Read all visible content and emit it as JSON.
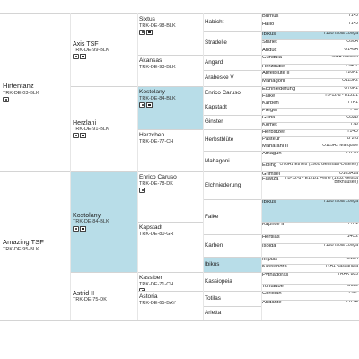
{
  "gen1": [
    {
      "name": "Hirtentanz",
      "reg": "TRK-DE-03-BLK",
      "icons": [
        "camera-icon"
      ]
    },
    {
      "name": "Amazing TSF",
      "reg": "TRK-DE-95-BLK"
    }
  ],
  "gen2": [
    {
      "name": "Axis TSF",
      "reg": "TRK-DE-99-BLK",
      "icons": [
        "camera-icon",
        "video-icon"
      ]
    },
    {
      "name": "Herzlani",
      "reg": "TRK-DE-91-BLK",
      "icons": [
        "camera-icon",
        "video-icon"
      ]
    },
    {
      "name": "Kostolany",
      "reg": "TRK-DE-84-BLK",
      "icons": [
        "camera-icon",
        "video-icon"
      ]
    },
    {
      "name": "Astrid II",
      "reg": "TRK-DE-75-DK"
    }
  ],
  "gen3": [
    {
      "name": "Sixtus",
      "reg": "TRK-DE-98-BLK",
      "icons": [
        "camera-icon",
        "video-icon"
      ]
    },
    {
      "name": "Akansas",
      "reg": "TRK-DE-93-BLK"
    },
    {
      "name": "Kostolany",
      "reg": "TRK-DE-84-BLK",
      "icons": [
        "camera-icon",
        "video-icon"
      ]
    },
    {
      "name": "Herzchen",
      "reg": "TRK-DE-77-CH"
    },
    {
      "name": "Enrico Caruso",
      "reg": "TRK-DE-78-DK",
      "icons": [
        "camera-icon"
      ]
    },
    {
      "name": "Kapstadt",
      "reg": "TRK-DE-80-GR"
    },
    {
      "name": "Kassiber",
      "reg": "TRK-DE-71-CH",
      "icons": [
        "camera-icon"
      ]
    },
    {
      "name": "Astoria",
      "reg": "TRK-DE-65-BAY"
    }
  ],
  "gen4": [
    {
      "name": "Habicht"
    },
    {
      "name": "Stradelle"
    },
    {
      "name": "Angard"
    },
    {
      "name": "Arabeske V"
    },
    {
      "name": "Enrico Caruso"
    },
    {
      "name": "Kapstadt"
    },
    {
      "name": "Ginster"
    },
    {
      "name": "Herbstblüte"
    },
    {
      "name": "Mahagoni"
    },
    {
      "name": "Elchniederung"
    },
    {
      "name": "Falke"
    },
    {
      "name": "Karben"
    },
    {
      "name": "Ibikus"
    },
    {
      "name": "Kassiopeia"
    },
    {
      "name": "Totilas"
    },
    {
      "name": "Arietta"
    }
  ],
  "gen5": [
    {
      "name": "Burnus",
      "reg": "T14J"
    },
    {
      "name": "Hallo",
      "reg": "T14J"
    },
    {
      "name": "Ibikus",
      "reg": "T15B Isola Longa"
    },
    {
      "name": "Starlet",
      "reg": "O90A"
    },
    {
      "name": "Anduc",
      "reg": "O149A"
    },
    {
      "name": "Gundula",
      "reg": "S84A Istella II"
    },
    {
      "name": "Herzbube",
      "reg": "T140Z"
    },
    {
      "name": "Apfelblüte II",
      "reg": "T20F1"
    },
    {
      "name": "Mahagoni",
      "reg": "O115A2"
    },
    {
      "name": "Elchniederung",
      "reg": "O76A1"
    },
    {
      "name": "Falke",
      "reg": "TB-12-d - E12B1"
    },
    {
      "name": "Karben",
      "reg": "T7A1"
    },
    {
      "name": "Pregel",
      "reg": "T4C"
    },
    {
      "name": "Guda",
      "reg": "O32B"
    },
    {
      "name": "Komet",
      "reg": "T7B"
    },
    {
      "name": "Herbstzeit",
      "reg": "T14O"
    },
    {
      "name": "Pasteur",
      "reg": "TB 2-d"
    },
    {
      "name": "Maharani II",
      "reg": "O115A2 Marquise"
    },
    {
      "name": "Amagun",
      "reg": "O27B"
    },
    {
      "name": "Elbing",
      "reg": "O76A1 Ethies (1960 Gehlhaar-Ditterke)"
    },
    {
      "name": "Grimsel",
      "reg": "O103A1a"
    },
    {
      "name": "Fawiza",
      "reg": "TB-12-d - E12B1 Feine (1952 Gestüt Birkhausen)"
    },
    {
      "name": "Ibikus",
      "reg": "T15B Isola Longa"
    },
    {
      "name": "Kaprice II",
      "reg": "T7A1"
    },
    {
      "name": "Hertilas",
      "reg": "T14O2"
    },
    {
      "name": "Isolda",
      "reg": "T15B Isola Longa"
    },
    {
      "name": "Impuls",
      "reg": "O15A"
    },
    {
      "name": "Kassandra",
      "reg": "T7A1 Kassandra"
    },
    {
      "name": "Pythagoras",
      "reg": "TRAK 885"
    },
    {
      "name": "Tontaube",
      "reg": "O022"
    },
    {
      "name": "Coriolan",
      "reg": "T14L"
    },
    {
      "name": "Andante",
      "reg": "O27A"
    }
  ],
  "colors": {
    "highlight": "#b8dde8",
    "line": "#d4d4d4",
    "text": "#222222"
  }
}
